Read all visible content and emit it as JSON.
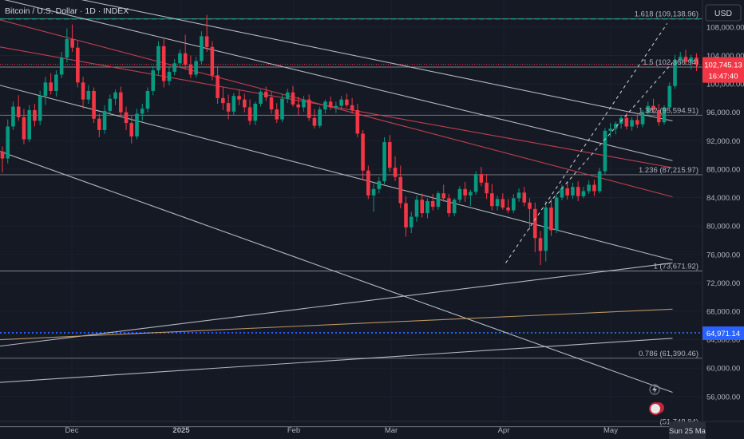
{
  "chart_data": {
    "type": "candlestick",
    "title": "Bitcoin / U.S. Dollar · 1D · INDEX",
    "currency_button": "USD",
    "y_ticks": [
      "56,000.00",
      "60,000.00",
      "64,000.00",
      "68,000.00",
      "72,000.00",
      "76,000.00",
      "80,000.00",
      "84,000.00",
      "88,000.00",
      "92,000.00",
      "96,000.00",
      "100,000.00",
      "104,000.00",
      "108,000.00"
    ],
    "y_range": [
      52500,
      111800
    ],
    "x_ticks": [
      "Dec",
      "2025",
      "Feb",
      "Mar",
      "Apr",
      "May"
    ],
    "x_date_label": "Sun 25 Ma",
    "price_label": {
      "value": 102745.13,
      "text": "102,745.13",
      "countdown": "16:47:40",
      "color": "#f23645"
    },
    "dotted_level": {
      "value": 64971.14,
      "text": "64,971.14",
      "color": "#2962ff"
    },
    "dashed_level": {
      "value": 109138.96,
      "color": "#089981"
    },
    "fib_levels": [
      {
        "value": 109138.96,
        "text": "1.618 (109,138.96)"
      },
      {
        "value": 102366.94,
        "text": "1.5 (102,366.94)"
      },
      {
        "value": 95594.91,
        "text": "1.382 (95,594.91)"
      },
      {
        "value": 87215.97,
        "text": "1.236 (87,215.97)"
      },
      {
        "value": 73671.92,
        "text": "1 (73,671.92)"
      },
      {
        "value": 61390.46,
        "text": "0.786 (61,390.46)"
      },
      {
        "value": 51748.94,
        "text": "(51,748.94)"
      }
    ],
    "candle_colors": {
      "up": "#089981",
      "down": "#f23645"
    },
    "candles": [
      [
        90500,
        91200,
        87500,
        89500
      ],
      [
        89500,
        95000,
        88800,
        94000
      ],
      [
        94000,
        97500,
        93500,
        96800
      ],
      [
        96800,
        98400,
        94800,
        95300
      ],
      [
        95300,
        96500,
        91500,
        92200
      ],
      [
        92200,
        97000,
        91800,
        96300
      ],
      [
        96300,
        97200,
        94000,
        94800
      ],
      [
        94800,
        99000,
        94200,
        98300
      ],
      [
        98300,
        101000,
        97000,
        100200
      ],
      [
        100200,
        101500,
        98500,
        99000
      ],
      [
        99000,
        101900,
        98200,
        101300
      ],
      [
        101300,
        104500,
        100800,
        103700
      ],
      [
        103700,
        107800,
        103000,
        106300
      ],
      [
        106300,
        108350,
        104500,
        105100
      ],
      [
        105100,
        106000,
        99500,
        100200
      ],
      [
        100200,
        101000,
        96500,
        97800
      ],
      [
        97800,
        99800,
        97200,
        99000
      ],
      [
        99000,
        99500,
        94500,
        95100
      ],
      [
        95100,
        95800,
        92500,
        93500
      ],
      [
        93500,
        97000,
        93000,
        96200
      ],
      [
        96200,
        98500,
        95800,
        97900
      ],
      [
        97900,
        99200,
        97000,
        98800
      ],
      [
        98800,
        99600,
        95500,
        96000
      ],
      [
        96000,
        96800,
        93500,
        94500
      ],
      [
        94500,
        95500,
        91600,
        92600
      ],
      [
        92600,
        96500,
        92200,
        95800
      ],
      [
        95800,
        97200,
        94800,
        96500
      ],
      [
        96500,
        99500,
        96000,
        99000
      ],
      [
        99000,
        102500,
        98400,
        101900
      ],
      [
        101900,
        106000,
        101300,
        105300
      ],
      [
        105300,
        106300,
        99500,
        100400
      ],
      [
        100400,
        102500,
        99800,
        101700
      ],
      [
        101700,
        103500,
        101200,
        102900
      ],
      [
        102900,
        104800,
        102300,
        104300
      ],
      [
        104300,
        106900,
        102000,
        102700
      ],
      [
        102700,
        104000,
        100800,
        101300
      ],
      [
        101300,
        103800,
        100900,
        103200
      ],
      [
        103200,
        107400,
        102800,
        106700
      ],
      [
        106700,
        109700,
        104500,
        105200
      ],
      [
        105200,
        106000,
        100500,
        101200
      ],
      [
        101200,
        102500,
        97200,
        98000
      ],
      [
        98000,
        99500,
        96300,
        97300
      ],
      [
        97300,
        98500,
        95000,
        96100
      ],
      [
        96100,
        98700,
        95600,
        98300
      ],
      [
        98300,
        99200,
        97000,
        97800
      ],
      [
        97800,
        98600,
        96000,
        96700
      ],
      [
        96700,
        97800,
        94200,
        94800
      ],
      [
        94800,
        97500,
        94200,
        97200
      ],
      [
        97200,
        99200,
        96800,
        98900
      ],
      [
        98900,
        99600,
        97600,
        98100
      ],
      [
        98100,
        98900,
        95800,
        96400
      ],
      [
        96400,
        97300,
        94500,
        95000
      ],
      [
        95000,
        98500,
        94600,
        97900
      ],
      [
        97900,
        99300,
        97300,
        98800
      ],
      [
        98800,
        99700,
        96800,
        97100
      ],
      [
        97100,
        98200,
        95600,
        96700
      ],
      [
        96700,
        98300,
        96100,
        97800
      ],
      [
        97800,
        98500,
        94800,
        95200
      ],
      [
        95200,
        96500,
        93700,
        94100
      ],
      [
        94100,
        96800,
        93800,
        96400
      ],
      [
        96400,
        97800,
        95800,
        97500
      ],
      [
        97500,
        98200,
        96300,
        96700
      ],
      [
        96700,
        97500,
        95900,
        96900
      ],
      [
        96900,
        98300,
        96300,
        97800
      ],
      [
        97800,
        98600,
        96700,
        97000
      ],
      [
        97000,
        98000,
        95800,
        96300
      ],
      [
        96300,
        97200,
        92500,
        93000
      ],
      [
        93000,
        93500,
        86500,
        87800
      ],
      [
        87800,
        88500,
        83800,
        84300
      ],
      [
        84300,
        86000,
        82000,
        85200
      ],
      [
        85200,
        86900,
        84600,
        86300
      ],
      [
        86300,
        92500,
        85900,
        91800
      ],
      [
        91800,
        92800,
        87600,
        88200
      ],
      [
        88200,
        89800,
        86300,
        86900
      ],
      [
        86900,
        88500,
        82500,
        83200
      ],
      [
        83200,
        84200,
        78500,
        79800
      ],
      [
        79800,
        82000,
        79000,
        81300
      ],
      [
        81300,
        84300,
        80600,
        83700
      ],
      [
        83700,
        84600,
        81200,
        81800
      ],
      [
        81800,
        83900,
        81100,
        83500
      ],
      [
        83500,
        84500,
        82200,
        82700
      ],
      [
        82700,
        84900,
        82300,
        84600
      ],
      [
        84600,
        85800,
        83400,
        83900
      ],
      [
        83900,
        84500,
        81300,
        81800
      ],
      [
        81800,
        83900,
        81400,
        83700
      ],
      [
        83700,
        85600,
        83300,
        85200
      ],
      [
        85200,
        86200,
        83400,
        84300
      ],
      [
        84300,
        85100,
        82800,
        84800
      ],
      [
        84800,
        87700,
        84400,
        87300
      ],
      [
        87300,
        88300,
        85600,
        86100
      ],
      [
        86100,
        87300,
        83800,
        84600
      ],
      [
        84600,
        85900,
        82200,
        82800
      ],
      [
        82800,
        84300,
        82200,
        83800
      ],
      [
        83800,
        84600,
        82300,
        82600
      ],
      [
        82600,
        83800,
        81800,
        82200
      ],
      [
        82200,
        84500,
        81800,
        83900
      ],
      [
        83900,
        85300,
        83400,
        84700
      ],
      [
        84700,
        85500,
        82800,
        83300
      ],
      [
        83300,
        83900,
        79500,
        82400
      ],
      [
        82400,
        83300,
        76300,
        78300
      ],
      [
        78300,
        79300,
        74500,
        76500
      ],
      [
        76500,
        83500,
        75000,
        82600
      ],
      [
        82600,
        83800,
        78600,
        79400
      ],
      [
        79400,
        84600,
        79000,
        84000
      ],
      [
        84000,
        85800,
        83600,
        85300
      ],
      [
        85300,
        86300,
        83700,
        84300
      ],
      [
        84300,
        86100,
        83800,
        85500
      ],
      [
        85500,
        86300,
        83500,
        84200
      ],
      [
        84200,
        85500,
        83900,
        84900
      ],
      [
        84900,
        86400,
        84500,
        85800
      ],
      [
        85800,
        86500,
        84200,
        84900
      ],
      [
        84900,
        88200,
        84600,
        87700
      ],
      [
        87700,
        93800,
        87300,
        93400
      ],
      [
        93400,
        94500,
        92500,
        93700
      ],
      [
        93700,
        94700,
        92900,
        94400
      ],
      [
        94400,
        95600,
        93700,
        95200
      ],
      [
        95200,
        95900,
        93600,
        94000
      ],
      [
        94000,
        95300,
        93400,
        94900
      ],
      [
        94900,
        95700,
        93800,
        94300
      ],
      [
        94300,
        96300,
        93900,
        95900
      ],
      [
        95900,
        97500,
        95400,
        96900
      ],
      [
        96900,
        97900,
        95800,
        96300
      ],
      [
        96300,
        97200,
        94100,
        94600
      ],
      [
        94600,
        97000,
        94300,
        96700
      ],
      [
        96700,
        100200,
        96400,
        99700
      ],
      [
        99700,
        104100,
        99300,
        103300
      ],
      [
        103300,
        104500,
        102600,
        103800
      ],
      [
        103800,
        104800,
        102700,
        103100
      ],
      [
        103100,
        104100,
        102000,
        103700
      ],
      [
        103700,
        104300,
        101800,
        102745
      ]
    ],
    "lines": [
      {
        "from": [
          0,
          114200
        ],
        "to": [
          125,
          94800
        ],
        "color": "#c4c7cf"
      },
      {
        "from": [
          0,
          112000
        ],
        "to": [
          125,
          89200
        ],
        "color": "#c4c7cf"
      },
      {
        "from": [
          0,
          109000
        ],
        "to": [
          125,
          84100
        ],
        "color": "#d04552"
      },
      {
        "from": [
          0,
          105200
        ],
        "to": [
          125,
          88200
        ],
        "color": "#d04552"
      },
      {
        "from": [
          0,
          99800
        ],
        "to": [
          125,
          75200
        ],
        "color": "#c4c7cf"
      },
      {
        "from": [
          0,
          90500
        ],
        "to": [
          125,
          56600
        ],
        "color": "#c4c7cf"
      },
      {
        "from": [
          0,
          63100
        ],
        "to": [
          125,
          74800
        ],
        "color": "#c4c7cf"
      },
      {
        "from": [
          0,
          58000
        ],
        "to": [
          125,
          64200
        ],
        "color": "#c4c7cf"
      },
      {
        "from": [
          0,
          64000
        ],
        "to": [
          125,
          68300
        ],
        "color": "#c8a06a"
      }
    ],
    "dashed_channel": [
      {
        "from": [
          94,
          74800
        ],
        "to": [
          124,
          108500
        ]
      },
      {
        "from": [
          102,
          83200
        ],
        "to": [
          125,
          103000
        ]
      }
    ]
  }
}
